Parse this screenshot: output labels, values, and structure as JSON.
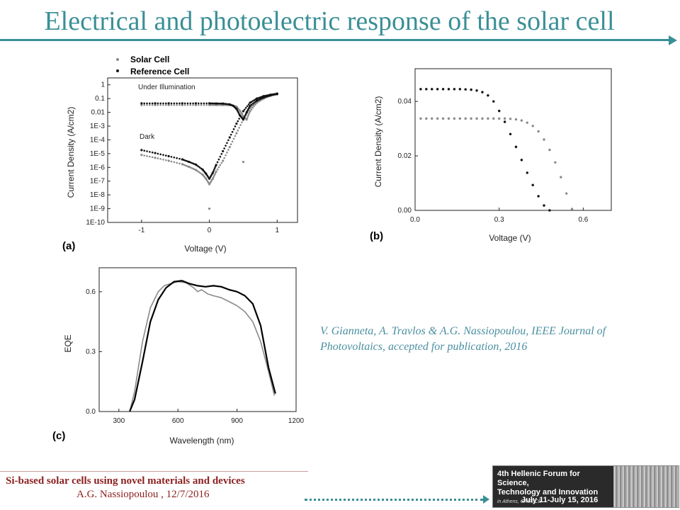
{
  "slide": {
    "title": "Electrical and photoelectric response of the solar cell",
    "citation": "V. Gianneta, A. Travlos & A.G. Nassiopoulou, IEEE Journal of Photovoltaics, accepted for publication, 2016",
    "footer_title": "Si-based solar cells using novel materials and devices",
    "footer_author": "A.G. Nassiopoulou ,  12/7/2016",
    "logo_line1": "4th Hellenic Forum for Science,",
    "logo_line2": "Technology and Innovation",
    "logo_sub": "in Athens, GREECE",
    "logo_date": "July 11-July 15, 2016",
    "colors": {
      "accent": "#3a8f96",
      "footer": "#8b1f1f",
      "citation": "#4a8fa0"
    }
  },
  "chart_data": [
    {
      "panel": "(a)",
      "type": "scatter",
      "xlabel": "Voltage (V)",
      "ylabel": "Current Density (A/cm2)",
      "xlim": [
        -1.5,
        1.3
      ],
      "ylim_log10": [
        -10,
        0.5
      ],
      "yscale": "log",
      "xticks": [
        -1,
        0,
        1
      ],
      "xtick_labels": [
        "-1",
        "0",
        "1"
      ],
      "yticks_log10": [
        -10,
        -9,
        -8,
        -7,
        -6,
        -5,
        -4,
        -3,
        -2,
        -1,
        0
      ],
      "ytick_labels": [
        "1E-10",
        "1E-9",
        "1E-8",
        "1E-7",
        "1E-6",
        "1E-5",
        "1E-4",
        "1E-3",
        "0.01",
        "0.1",
        "1"
      ],
      "legend": [
        "Solar Cell",
        "Reference Cell"
      ],
      "legend_position": "top-left",
      "annotations": [
        "Under Illumination",
        "Dark"
      ],
      "series": [
        {
          "name": "Solar Cell",
          "color": "#8a8a8a",
          "curve": "dark",
          "x": [
            -1,
            -0.8,
            -0.6,
            -0.4,
            -0.3,
            -0.2,
            -0.1,
            -0.05,
            0,
            0.05,
            0.1,
            0.2,
            0.3,
            0.4,
            0.5,
            0.6,
            0.7,
            0.8,
            0.9,
            1.0
          ],
          "y": [
            8e-06,
            5e-06,
            3e-06,
            1.7e-06,
            1.1e-06,
            6.5e-07,
            3e-07,
            1.5e-07,
            6e-08,
            1.5e-07,
            5e-07,
            3e-06,
            3e-05,
            0.0003,
            0.003,
            0.02,
            0.06,
            0.11,
            0.16,
            0.2
          ]
        },
        {
          "name": "Reference Cell",
          "color": "#111111",
          "curve": "dark",
          "x": [
            -1,
            -0.8,
            -0.6,
            -0.4,
            -0.3,
            -0.2,
            -0.1,
            -0.05,
            0,
            0.05,
            0.1,
            0.2,
            0.3,
            0.4,
            0.5,
            0.6,
            0.7,
            0.8,
            0.9,
            1.0
          ],
          "y": [
            1.8e-05,
            1.1e-05,
            6.5e-06,
            3.8e-06,
            2.5e-06,
            1.6e-06,
            7e-07,
            3.5e-07,
            1.5e-07,
            4e-07,
            1.5e-06,
            1.5e-05,
            0.00015,
            0.0015,
            0.012,
            0.05,
            0.1,
            0.15,
            0.19,
            0.23
          ]
        },
        {
          "name": "Solar Cell",
          "color": "#8a8a8a",
          "curve": "illuminated",
          "x": [
            -1,
            -0.8,
            -0.6,
            -0.4,
            -0.2,
            0,
            0.1,
            0.2,
            0.3,
            0.35,
            0.4,
            0.45,
            0.5,
            0.55,
            0.6,
            0.7,
            0.8,
            0.9,
            1.0
          ],
          "y": [
            0.034,
            0.034,
            0.034,
            0.034,
            0.034,
            0.034,
            0.034,
            0.034,
            0.033,
            0.031,
            0.026,
            0.013,
            0.005,
            0.003,
            0.012,
            0.05,
            0.1,
            0.16,
            0.21
          ]
        },
        {
          "name": "Reference Cell",
          "color": "#111111",
          "curve": "illuminated",
          "x": [
            -1,
            -0.8,
            -0.6,
            -0.4,
            -0.2,
            0,
            0.1,
            0.2,
            0.3,
            0.35,
            0.4,
            0.45,
            0.5,
            0.55,
            0.6,
            0.7,
            0.8,
            0.9,
            1.0
          ],
          "y": [
            0.045,
            0.045,
            0.045,
            0.045,
            0.045,
            0.045,
            0.044,
            0.043,
            0.038,
            0.03,
            0.018,
            0.006,
            0.003,
            0.01,
            0.03,
            0.07,
            0.12,
            0.17,
            0.22
          ]
        },
        {
          "name": "Solar Cell",
          "color": "#8a8a8a",
          "curve": "outliers",
          "x": [
            0,
            0.5
          ],
          "y": [
            1e-09,
            2.5e-06
          ]
        }
      ]
    },
    {
      "panel": "(b)",
      "type": "scatter",
      "xlabel": "Voltage (V)",
      "ylabel": "Current Density (A/cm2)",
      "xlim": [
        0,
        0.7
      ],
      "ylim": [
        0,
        0.052
      ],
      "xticks": [
        0.0,
        0.3,
        0.6
      ],
      "xtick_labels": [
        "0.0",
        "0.3",
        "0.6"
      ],
      "yticks": [
        0.0,
        0.02,
        0.04
      ],
      "ytick_labels": [
        "0.00",
        "0.02",
        "0.04"
      ],
      "series": [
        {
          "name": "Reference Cell",
          "color": "#111111",
          "x": [
            0.02,
            0.04,
            0.06,
            0.08,
            0.1,
            0.12,
            0.14,
            0.16,
            0.18,
            0.2,
            0.22,
            0.24,
            0.26,
            0.28,
            0.3,
            0.32,
            0.34,
            0.36,
            0.38,
            0.4,
            0.42,
            0.44,
            0.46,
            0.48
          ],
          "y": [
            0.0445,
            0.0445,
            0.0445,
            0.0445,
            0.0445,
            0.0445,
            0.0445,
            0.0445,
            0.0444,
            0.0443,
            0.044,
            0.0434,
            0.0422,
            0.04,
            0.0365,
            0.0325,
            0.028,
            0.0233,
            0.0185,
            0.0138,
            0.0093,
            0.0052,
            0.0018,
            0.0
          ]
        },
        {
          "name": "Solar Cell",
          "color": "#8a8a8a",
          "x": [
            0.02,
            0.04,
            0.06,
            0.08,
            0.1,
            0.12,
            0.14,
            0.16,
            0.18,
            0.2,
            0.22,
            0.24,
            0.26,
            0.28,
            0.3,
            0.32,
            0.34,
            0.36,
            0.38,
            0.4,
            0.42,
            0.44,
            0.46,
            0.48,
            0.5,
            0.52,
            0.54,
            0.56
          ],
          "y": [
            0.0337,
            0.0337,
            0.0337,
            0.0337,
            0.0337,
            0.0337,
            0.0337,
            0.0337,
            0.0337,
            0.0337,
            0.0337,
            0.0337,
            0.0337,
            0.0337,
            0.0337,
            0.0337,
            0.0336,
            0.0334,
            0.033,
            0.0322,
            0.031,
            0.029,
            0.026,
            0.0222,
            0.0176,
            0.0122,
            0.0062,
            0.0005
          ]
        }
      ]
    },
    {
      "panel": "(c)",
      "type": "line",
      "xlabel": "Wavelength (nm)",
      "ylabel": "EQE",
      "xlim": [
        200,
        1200
      ],
      "ylim": [
        0.0,
        0.72
      ],
      "xticks": [
        300,
        600,
        900,
        1200
      ],
      "xtick_labels": [
        "300",
        "600",
        "900",
        "1200"
      ],
      "yticks": [
        0.0,
        0.3,
        0.6
      ],
      "ytick_labels": [
        "0.0",
        "0.3",
        "0.6"
      ],
      "series": [
        {
          "name": "Solar Cell",
          "color": "#8a8a8a",
          "x": [
            355,
            380,
            420,
            460,
            500,
            530,
            560,
            600,
            640,
            680,
            700,
            720,
            750,
            780,
            820,
            860,
            900,
            940,
            980,
            1020,
            1060,
            1090
          ],
          "y": [
            0.0,
            0.1,
            0.35,
            0.52,
            0.6,
            0.63,
            0.64,
            0.65,
            0.645,
            0.62,
            0.6,
            0.61,
            0.59,
            0.58,
            0.57,
            0.55,
            0.53,
            0.5,
            0.45,
            0.35,
            0.2,
            0.08
          ]
        },
        {
          "name": "Reference Cell",
          "color": "#000000",
          "x": [
            355,
            380,
            420,
            460,
            500,
            540,
            580,
            620,
            660,
            700,
            740,
            780,
            820,
            860,
            900,
            940,
            980,
            1020,
            1060,
            1095
          ],
          "y": [
            0.0,
            0.06,
            0.25,
            0.45,
            0.56,
            0.62,
            0.65,
            0.655,
            0.64,
            0.63,
            0.625,
            0.63,
            0.625,
            0.61,
            0.6,
            0.58,
            0.54,
            0.43,
            0.22,
            0.09
          ]
        }
      ]
    }
  ]
}
